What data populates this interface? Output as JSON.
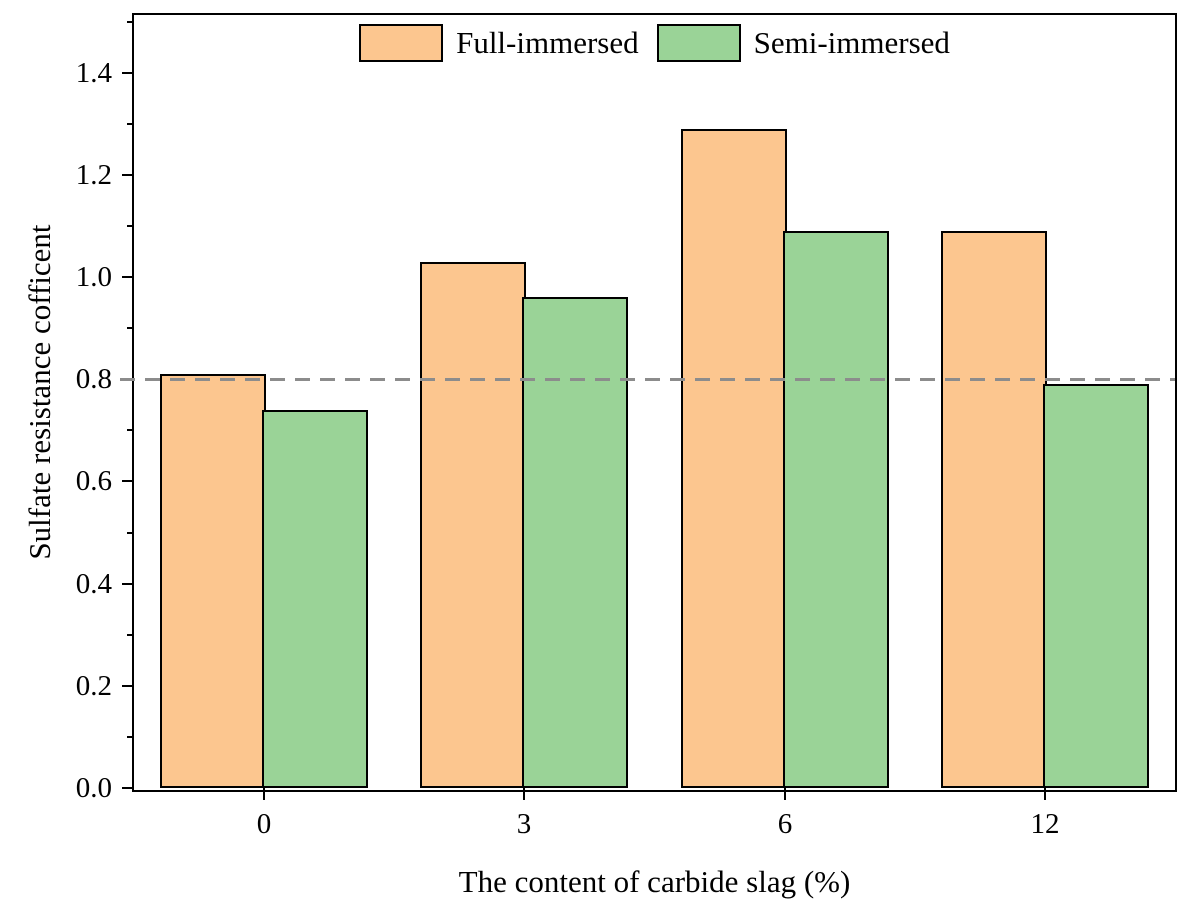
{
  "chart_data": {
    "type": "bar",
    "title": "",
    "categories": [
      "0",
      "3",
      "6",
      "12"
    ],
    "series": [
      {
        "name": "Full-immersed",
        "color": "#FCC68F",
        "values": [
          0.81,
          1.03,
          1.29,
          1.09
        ]
      },
      {
        "name": "Semi-immersed",
        "color": "#9AD397",
        "values": [
          0.74,
          0.96,
          1.09,
          0.79
        ]
      }
    ],
    "xlabel": "The content of carbide slag (%)",
    "ylabel": "Sulfate resistance cofficent",
    "ylim": [
      0,
      1.51
    ],
    "yticks": [
      "0.0",
      "0.2",
      "0.4",
      "0.6",
      "0.8",
      "1.0",
      "1.2",
      "1.4"
    ],
    "ytick_step": 0.2,
    "minor_tick_step": 0.1,
    "reference_line": {
      "y": 0.8,
      "style": "dashed",
      "color": "#8C8C8C"
    },
    "bar_border_color": "#000000",
    "legend_position": "top-center",
    "grid": false
  }
}
